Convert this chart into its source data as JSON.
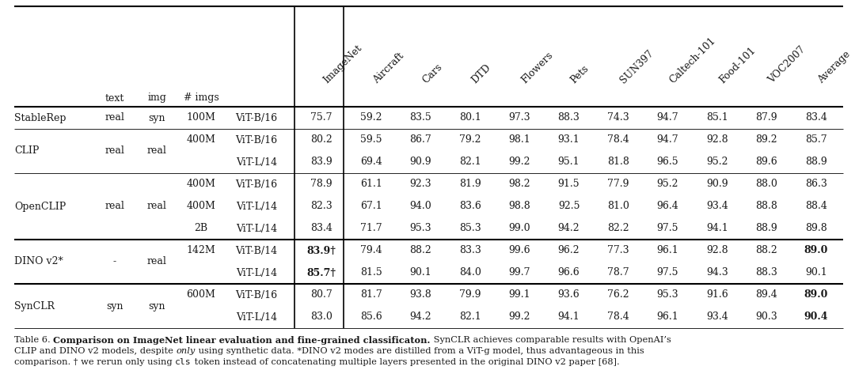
{
  "col_headers_rotated": [
    "ImageNet",
    "Aircraft",
    "Cars",
    "DTD",
    "Flowers",
    "Pets",
    "SUN397",
    "Caltech-101",
    "Food-101",
    "VOC2007",
    "Average"
  ],
  "rows": [
    {
      "model": "StableRep",
      "text": "real",
      "img": "syn",
      "nimgs": "100M",
      "arch": "ViT-B/16",
      "vals": [
        "75.7",
        "59.2",
        "83.5",
        "80.1",
        "97.3",
        "88.3",
        "74.3",
        "94.7",
        "85.1",
        "87.9",
        "83.4"
      ],
      "bold": [
        false,
        false,
        false,
        false,
        false,
        false,
        false,
        false,
        false,
        false,
        false
      ]
    },
    {
      "model": "CLIP",
      "text": "real",
      "img": "real",
      "nimgs": "400M",
      "arch": "ViT-B/16",
      "vals": [
        "80.2",
        "59.5",
        "86.7",
        "79.2",
        "98.1",
        "93.1",
        "78.4",
        "94.7",
        "92.8",
        "89.2",
        "85.7"
      ],
      "bold": [
        false,
        false,
        false,
        false,
        false,
        false,
        false,
        false,
        false,
        false,
        false
      ]
    },
    {
      "model": "",
      "text": "",
      "img": "",
      "nimgs": "",
      "arch": "ViT-L/14",
      "vals": [
        "83.9",
        "69.4",
        "90.9",
        "82.1",
        "99.2",
        "95.1",
        "81.8",
        "96.5",
        "95.2",
        "89.6",
        "88.9"
      ],
      "bold": [
        false,
        false,
        false,
        false,
        false,
        false,
        false,
        false,
        false,
        false,
        false
      ]
    },
    {
      "model": "OpenCLIP",
      "text": "real",
      "img": "real",
      "nimgs": "400M",
      "arch": "ViT-B/16",
      "vals": [
        "78.9",
        "61.1",
        "92.3",
        "81.9",
        "98.2",
        "91.5",
        "77.9",
        "95.2",
        "90.9",
        "88.0",
        "86.3"
      ],
      "bold": [
        false,
        false,
        false,
        false,
        false,
        false,
        false,
        false,
        false,
        false,
        false
      ]
    },
    {
      "model": "",
      "text": "",
      "img": "",
      "nimgs": "400M",
      "arch": "ViT-L/14",
      "vals": [
        "82.3",
        "67.1",
        "94.0",
        "83.6",
        "98.8",
        "92.5",
        "81.0",
        "96.4",
        "93.4",
        "88.8",
        "88.4"
      ],
      "bold": [
        false,
        false,
        false,
        false,
        false,
        false,
        false,
        false,
        false,
        false,
        false
      ]
    },
    {
      "model": "",
      "text": "",
      "img": "",
      "nimgs": "2B",
      "arch": "ViT-L/14",
      "vals": [
        "83.4",
        "71.7",
        "95.3",
        "85.3",
        "99.0",
        "94.2",
        "82.2",
        "97.5",
        "94.1",
        "88.9",
        "89.8"
      ],
      "bold": [
        false,
        false,
        false,
        false,
        false,
        false,
        false,
        false,
        false,
        false,
        false
      ]
    },
    {
      "model": "DINO v2*",
      "text": "-",
      "img": "real",
      "nimgs": "142M",
      "arch": "ViT-B/14",
      "vals": [
        "83.9†",
        "79.4",
        "88.2",
        "83.3",
        "99.6",
        "96.2",
        "77.3",
        "96.1",
        "92.8",
        "88.2",
        "89.0"
      ],
      "bold": [
        true,
        false,
        false,
        false,
        false,
        false,
        false,
        false,
        false,
        false,
        true
      ]
    },
    {
      "model": "",
      "text": "",
      "img": "",
      "nimgs": "",
      "arch": "ViT-L/14",
      "vals": [
        "85.7†",
        "81.5",
        "90.1",
        "84.0",
        "99.7",
        "96.6",
        "78.7",
        "97.5",
        "94.3",
        "88.3",
        "90.1"
      ],
      "bold": [
        true,
        false,
        false,
        false,
        false,
        false,
        false,
        false,
        false,
        false,
        false
      ]
    },
    {
      "model": "SynCLR",
      "text": "syn",
      "img": "syn",
      "nimgs": "600M",
      "arch": "ViT-B/16",
      "vals": [
        "80.7",
        "81.7",
        "93.8",
        "79.9",
        "99.1",
        "93.6",
        "76.2",
        "95.3",
        "91.6",
        "89.4",
        "89.0"
      ],
      "bold": [
        false,
        false,
        false,
        false,
        false,
        false,
        false,
        false,
        false,
        false,
        true
      ]
    },
    {
      "model": "",
      "text": "",
      "img": "",
      "nimgs": "",
      "arch": "ViT-L/14",
      "vals": [
        "83.0",
        "85.6",
        "94.2",
        "82.1",
        "99.2",
        "94.1",
        "78.4",
        "96.1",
        "93.4",
        "90.3",
        "90.4"
      ],
      "bold": [
        false,
        false,
        false,
        false,
        false,
        false,
        false,
        false,
        false,
        false,
        true
      ]
    }
  ],
  "model_groups": [
    {
      "name": "StableRep",
      "rows": [
        0
      ],
      "text": "real",
      "img": "syn"
    },
    {
      "name": "CLIP",
      "rows": [
        1,
        2
      ],
      "text": "real",
      "img": "real"
    },
    {
      "name": "OpenCLIP",
      "rows": [
        3,
        4,
        5
      ],
      "text": "real",
      "img": "real"
    },
    {
      "name": "DINO v2*",
      "rows": [
        6,
        7
      ],
      "text": "-",
      "img": "real"
    },
    {
      "name": "SynCLR",
      "rows": [
        8,
        9
      ],
      "text": "syn",
      "img": "syn"
    }
  ],
  "nimgs_per_row": [
    "100M",
    "400M",
    "",
    "400M",
    "400M",
    "2B",
    "142M",
    "",
    "600M",
    ""
  ],
  "background_color": "#ffffff",
  "text_color": "#1a1a1a",
  "line_color": "#000000"
}
